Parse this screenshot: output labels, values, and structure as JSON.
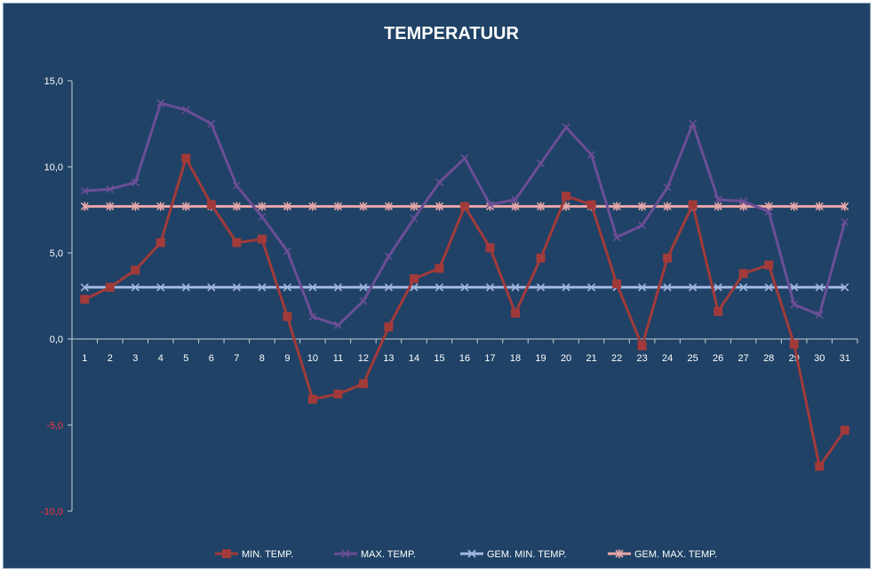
{
  "chart_data": {
    "type": "line",
    "title": "TEMPERATUUR",
    "xlabel": "",
    "ylabel": "",
    "ylim": [
      -10,
      15
    ],
    "y_ticks": [
      "15,0",
      "10,0",
      "5,0",
      "0,0",
      "-5,0",
      "-10,0"
    ],
    "y_tick_values": [
      15,
      10,
      5,
      0,
      -5,
      -10
    ],
    "categories": [
      "1",
      "2",
      "3",
      "4",
      "5",
      "6",
      "7",
      "8",
      "9",
      "10",
      "11",
      "12",
      "13",
      "14",
      "15",
      "16",
      "17",
      "18",
      "19",
      "20",
      "21",
      "22",
      "23",
      "24",
      "25",
      "26",
      "27",
      "28",
      "29",
      "30",
      "31"
    ],
    "grid": false,
    "legend_position": "bottom",
    "series": [
      {
        "name": "MIN. TEMP.",
        "color": "#a23a3a",
        "marker": "square",
        "values": [
          2.3,
          3.0,
          4.0,
          5.6,
          10.5,
          7.8,
          5.6,
          5.8,
          1.3,
          -3.5,
          -3.2,
          -2.6,
          0.7,
          3.5,
          4.1,
          7.7,
          5.3,
          1.5,
          4.7,
          8.3,
          7.8,
          3.2,
          -0.4,
          4.7,
          7.8,
          1.6,
          3.8,
          4.3,
          -0.3,
          -7.4,
          -5.3
        ]
      },
      {
        "name": "MAX. TEMP.",
        "color": "#6b4e96",
        "marker": "x",
        "values": [
          8.6,
          8.7,
          9.1,
          13.7,
          13.3,
          12.5,
          8.9,
          7.1,
          5.1,
          1.3,
          0.8,
          2.2,
          4.8,
          7.0,
          9.1,
          10.5,
          7.8,
          8.1,
          10.2,
          12.3,
          10.7,
          5.9,
          6.6,
          8.8,
          12.5,
          8.1,
          8.0,
          7.4,
          2.0,
          1.4,
          6.8
        ]
      },
      {
        "name": "GEM. MIN. TEMP.",
        "color": "#a3b8e0",
        "marker": "x",
        "values": [
          3.0,
          3.0,
          3.0,
          3.0,
          3.0,
          3.0,
          3.0,
          3.0,
          3.0,
          3.0,
          3.0,
          3.0,
          3.0,
          3.0,
          3.0,
          3.0,
          3.0,
          3.0,
          3.0,
          3.0,
          3.0,
          3.0,
          3.0,
          3.0,
          3.0,
          3.0,
          3.0,
          3.0,
          3.0,
          3.0,
          3.0
        ]
      },
      {
        "name": "GEM. MAX. TEMP.",
        "color": "#e8a8a8",
        "marker": "star",
        "values": [
          7.7,
          7.7,
          7.7,
          7.7,
          7.7,
          7.7,
          7.7,
          7.7,
          7.7,
          7.7,
          7.7,
          7.7,
          7.7,
          7.7,
          7.7,
          7.7,
          7.7,
          7.7,
          7.7,
          7.7,
          7.7,
          7.7,
          7.7,
          7.7,
          7.7,
          7.7,
          7.7,
          7.7,
          7.7,
          7.7,
          7.7
        ]
      }
    ]
  },
  "colors": {
    "background": "#1f4266",
    "axis": "#c8cfd8",
    "negative_tick": "#ff3040"
  }
}
